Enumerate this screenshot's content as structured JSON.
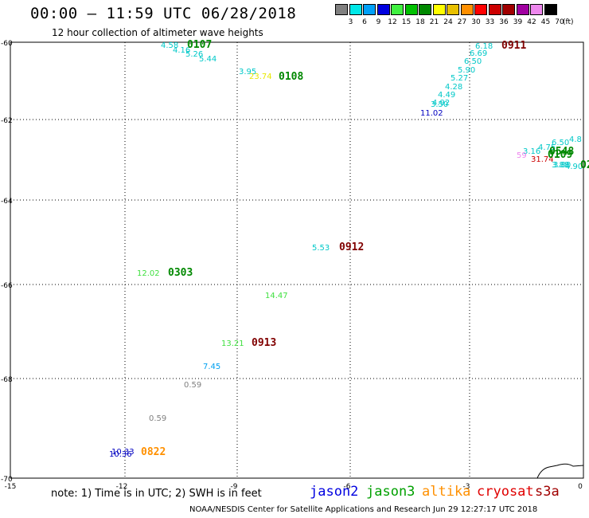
{
  "header": {
    "title": "00:00 – 11:59 UTC 06/28/2018",
    "subtitle": "12 hour collection of altimeter wave heights"
  },
  "legend": {
    "unit": "(ft)",
    "colors": [
      "#808080",
      "#00e8e8",
      "#00a0f8",
      "#0000e0",
      "#40f040",
      "#00c000",
      "#008800",
      "#ffff00",
      "#e8c000",
      "#ff9000",
      "#ff0000",
      "#cc0000",
      "#a00000",
      "#a000a0",
      "#ee88ee",
      "#000000"
    ],
    "labels": [
      "3",
      "6",
      "9",
      "12",
      "15",
      "18",
      "21",
      "24",
      "27",
      "30",
      "33",
      "36",
      "39",
      "42",
      "45",
      "70"
    ]
  },
  "axes": {
    "x_ticks": [
      "-15",
      "-12",
      "-9",
      "-6",
      "-3",
      "0"
    ],
    "y_ticks": [
      "-60",
      "-62",
      "-64",
      "-66",
      "-68",
      "-70"
    ]
  },
  "observations": [
    {
      "text": "4.58",
      "color": "#00c8c8"
    },
    {
      "text": "4.16",
      "color": "#00c8c8"
    },
    {
      "text": "5.26",
      "color": "#00c8c8"
    },
    {
      "text": "5.44",
      "color": "#00c8c8"
    },
    {
      "text": "0107",
      "color": "#008800"
    },
    {
      "text": "6.18",
      "color": "#00c8c8"
    },
    {
      "text": "6.69",
      "color": "#00c8c8"
    },
    {
      "text": "6.50",
      "color": "#00c8c8"
    },
    {
      "text": "5.90",
      "color": "#00c8c8"
    },
    {
      "text": "5.27",
      "color": "#00c8c8"
    },
    {
      "text": "4.28",
      "color": "#00c8c8"
    },
    {
      "text": "4.49",
      "color": "#00c8c8"
    },
    {
      "text": "4.92",
      "color": "#00c8c8"
    },
    {
      "text": "3.50",
      "color": "#00c8c8"
    },
    {
      "text": "11.02",
      "color": "#0000c0"
    },
    {
      "text": "0911",
      "color": "#800000"
    },
    {
      "text": "3.95",
      "color": "#00c8c8"
    },
    {
      "text": "23.74",
      "color": "#e8e800"
    },
    {
      "text": "0108",
      "color": "#008800"
    },
    {
      "text": "5.53",
      "color": "#00c8c8"
    },
    {
      "text": "0912",
      "color": "#800000"
    },
    {
      "text": "12.02",
      "color": "#40e040"
    },
    {
      "text": "0303",
      "color": "#008800"
    },
    {
      "text": "14.47",
      "color": "#40e040"
    },
    {
      "text": "13.21",
      "color": "#40e040"
    },
    {
      "text": "0913",
      "color": "#800000"
    },
    {
      "text": "7.45",
      "color": "#00a0f0"
    },
    {
      "text": "0.59",
      "color": "#808080"
    },
    {
      "text": "0.59",
      "color": "#808080"
    },
    {
      "text": "10.36",
      "color": "#0000c0"
    },
    {
      "text": "10.33",
      "color": "#0000c0"
    },
    {
      "text": "0822",
      "color": "#ff9000"
    },
    {
      "text": "6.50",
      "color": "#00c8c8"
    },
    {
      "text": "4.8",
      "color": "#00c8c8"
    },
    {
      "text": "4.75",
      "color": "#00c8c8"
    },
    {
      "text": "3.16",
      "color": "#00c8c8"
    },
    {
      "text": "0548",
      "color": "#008800"
    },
    {
      "text": "59",
      "color": "#ee88ee"
    },
    {
      "text": "31.74",
      "color": "#cc0000"
    },
    {
      "text": "0109",
      "color": "#008800"
    },
    {
      "text": "3.88",
      "color": "#00c8c8"
    },
    {
      "text": "3.80",
      "color": "#00c8c8"
    },
    {
      "text": "4.90",
      "color": "#00c8c8"
    },
    {
      "text": "02",
      "color": "#008800"
    }
  ],
  "footer": {
    "note": "note: 1) Time is in UTC; 2) SWH is in feet",
    "satellites": [
      {
        "name": "jason2",
        "color": "#0000e0"
      },
      {
        "name": "jason3",
        "color": "#00a000"
      },
      {
        "name": "altika",
        "color": "#ff9000"
      },
      {
        "name": "cryosat",
        "color": "#e00000"
      },
      {
        "name": "s3a",
        "color": "#a00000"
      }
    ],
    "credit": "NOAA/NESDIS Center for Satellite Applications and Research    Jun 29 12:27:17 UTC 2018"
  }
}
